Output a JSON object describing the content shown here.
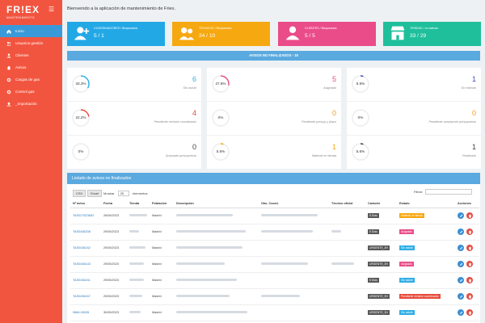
{
  "brand": {
    "name": "FR!EX",
    "sub": "MANTENIMIENTO"
  },
  "sidebar": {
    "items": [
      {
        "label": "Inicio",
        "icon": "home-icon",
        "active": true
      },
      {
        "label": "Usuarios gestión",
        "icon": "users-icon",
        "active": false
      },
      {
        "label": "Clientes",
        "icon": "user-icon",
        "active": false
      },
      {
        "label": "Avisos",
        "icon": "bell-icon",
        "active": false
      },
      {
        "label": "Cargas de gas",
        "icon": "gear-icon",
        "active": false
      },
      {
        "label": "Control gas",
        "icon": "gear-icon",
        "active": false
      },
      {
        "label": "_Importación",
        "icon": "upload-icon",
        "active": false
      }
    ]
  },
  "header": {
    "welcome": "Bienvenido a la aplicación de mantenimiento de Friex."
  },
  "cards": [
    {
      "label": "COORDINADORES / Bloqueados",
      "value": "5 / 1",
      "color": "#23a8e6",
      "icon": "user-plus-icon"
    },
    {
      "label": "TÉCNICOS / Bloqueados",
      "value": "24 / 10",
      "color": "#f6a810",
      "icon": "users-icon"
    },
    {
      "label": "CLIENTES / Bloqueados",
      "value": "5 / 5",
      "color": "#ea4c89",
      "icon": "user-icon"
    },
    {
      "label": "TIENDAS / no activas",
      "value": "33 / 29",
      "color": "#1fbf9b",
      "icon": "store-icon"
    }
  ],
  "notices_bar": {
    "title": "AVISOS NO FINALIZADOS - 18"
  },
  "stats": [
    {
      "pct": "33.3%",
      "percent": 33.3,
      "num": "6",
      "label": "Sin asistir",
      "color": "#2eaee6"
    },
    {
      "pct": "27.8%",
      "percent": 27.8,
      "num": "5",
      "label": "Asignado",
      "color": "#ea4c89"
    },
    {
      "pct": "5.6%",
      "percent": 5.6,
      "num": "1",
      "label": "En tránsito",
      "color": "#3f51b5"
    },
    {
      "pct": "22.2%",
      "percent": 22.2,
      "num": "4",
      "label": "Pendiente revisión coordinador",
      "color": "#e74c3c"
    },
    {
      "pct": "0%",
      "percent": 0,
      "num": "0",
      "label": "Pendiente presup y plazo",
      "color": "#f39c12"
    },
    {
      "pct": "0%",
      "percent": 0,
      "num": "0",
      "label": "Pendiente aceptación presupuesto",
      "color": "#f39c12"
    },
    {
      "pct": "0%",
      "percent": 0,
      "num": "0",
      "label": "Aceptado presupuesto",
      "color": "#444444"
    },
    {
      "pct": "5.6%",
      "percent": 5.6,
      "num": "1",
      "label": "Material en tienda",
      "color": "#f6a810"
    },
    {
      "pct": "5.6%",
      "percent": 5.6,
      "num": "1",
      "label": "Realizarlo",
      "color": "#444444"
    }
  ],
  "list": {
    "title": "Listado de avisos no finalizados",
    "csv": "CSV",
    "excel": "Excel",
    "show": "Mostrar",
    "page_size": "25",
    "elements": "elementos",
    "filter_label": "Filtrar:",
    "columns": [
      "Nº aviso",
      "Fecha",
      "Tienda",
      "Población",
      "Descripción",
      "Obs. Coord.",
      "Técnico oficial",
      "Carácter",
      "Estado",
      "Acciones"
    ],
    "rows": [
      {
        "id": "TAS0275Z3652",
        "date": "26/05/2023",
        "town": "Madrid",
        "char": "5 Días",
        "state": "Material en tienda",
        "state_color": "#f6a810"
      },
      {
        "id": "TAS0436208",
        "date": "29/05/2023",
        "town": "Madrid",
        "char": "5 Días",
        "state": "Asignado",
        "state_color": "#ea4c89"
      },
      {
        "id": "TAS0436242",
        "date": "29/05/2023",
        "town": "Madrid",
        "char": "URGENTE_3H",
        "state": "Sin asistir",
        "state_color": "#2eaee6"
      },
      {
        "id": "TAS0436143",
        "date": "29/05/2023",
        "town": "Madrid",
        "char": "URGENTE_3H",
        "state": "Asignado",
        "state_color": "#ea4c89"
      },
      {
        "id": "TAS0436241",
        "date": "29/05/2023",
        "town": "Madrid",
        "char": "5 Días",
        "state": "Sin asistir",
        "state_color": "#2eaee6"
      },
      {
        "id": "TAS0436167",
        "date": "29/05/2023",
        "town": "Madrid",
        "char": "URGENTE_3H",
        "state": "Pendiente revisión coordinador",
        "state_color": "#e74c3c"
      },
      {
        "id": "0866-00026",
        "date": "30/05/2023",
        "town": "Madrid",
        "char": "URGENTE_3H",
        "state": "Sin asistir",
        "state_color": "#2eaee6"
      }
    ]
  }
}
